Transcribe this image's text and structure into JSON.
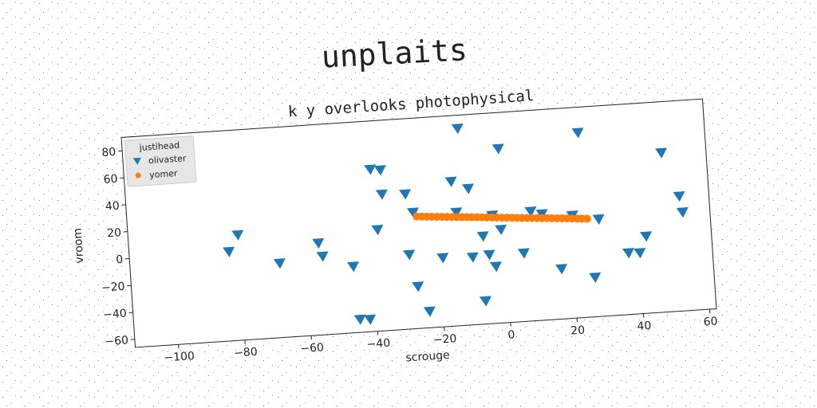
{
  "chart_data": {
    "type": "scatter",
    "title": "unplaits",
    "subtitle": "k y overlooks photophysical",
    "xlabel": "scrouge",
    "ylabel": "vroom",
    "legend_title": "justihead",
    "legend_position": "upper left",
    "xlim": [
      -113,
      62
    ],
    "ylim": [
      -66,
      90
    ],
    "xticks": [
      {
        "value": -100,
        "label": "−100"
      },
      {
        "value": -80,
        "label": "−80"
      },
      {
        "value": -60,
        "label": "−60"
      },
      {
        "value": -40,
        "label": "−40"
      },
      {
        "value": -20,
        "label": "−20"
      },
      0,
      20,
      40,
      60
    ],
    "yticks": [
      {
        "value": -60,
        "label": "−60"
      },
      {
        "value": -40,
        "label": "−40"
      },
      {
        "value": -20,
        "label": "−20"
      },
      0,
      20,
      40,
      60,
      80
    ],
    "series": [
      {
        "name": "olivaster",
        "color": "#1f77b4",
        "marker": "triangle_down",
        "x": [
          -83,
          -80,
          -68,
          -56,
          -55,
          -46,
          -45,
          -42,
          -39,
          -36,
          -36,
          -38,
          -29,
          -29,
          -27,
          -27,
          -24,
          -19,
          -15,
          -14,
          -10,
          -10,
          -6.5,
          -7,
          -5,
          -3.3,
          -3.2,
          -0.2,
          -1,
          -12,
          5.4,
          8.3,
          11.6,
          16.4,
          20.7,
          24,
          26.3,
          28.5,
          36.8,
          40.2,
          42.4,
          48.6,
          53.1,
          53.8
        ],
        "values": [
          0,
          12,
          -11,
          2,
          -8,
          -17,
          -56.5,
          -57,
          54,
          53,
          35,
          9,
          34,
          -11,
          20,
          -35,
          -54,
          -15,
          41,
          18,
          35,
          -16,
          -1,
          -49,
          -15,
          14,
          -24,
          63,
          3,
          80,
          -15.5,
          15,
          12.5,
          -29,
          10,
          71,
          -37,
          6,
          -20.5,
          -21,
          -9,
          52,
          19,
          7
        ]
      },
      {
        "name": "yomer",
        "color": "#ff7f0e",
        "marker": "circle",
        "x": [
          -26,
          -24.5,
          -23,
          -21.5,
          -20,
          -18.5,
          -17,
          -15.5,
          -14,
          -12.5,
          -11,
          -9.5,
          -8,
          -6.5,
          -5,
          -3.5,
          -2,
          -0.5,
          1,
          2.5,
          4,
          5.5,
          7,
          8.5,
          10,
          11.5,
          13,
          14.5,
          16,
          17.5,
          19,
          20.5,
          22,
          23.5,
          25
        ],
        "values": [
          17,
          16.7,
          16.4,
          16.1,
          15.8,
          15.5,
          15.2,
          14.9,
          14.6,
          14.4,
          14.1,
          13.8,
          13.5,
          13.2,
          12.9,
          12.6,
          12.3,
          12,
          11.7,
          11.4,
          11.1,
          10.8,
          10.5,
          10.2,
          9.9,
          9.6,
          9.4,
          9.1,
          8.8,
          8.5,
          8.2,
          7.9,
          7.6,
          7.3,
          7
        ]
      }
    ]
  }
}
